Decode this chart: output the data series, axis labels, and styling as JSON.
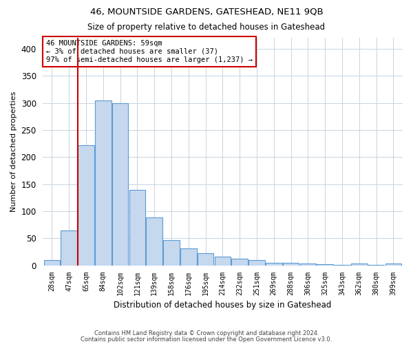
{
  "title": "46, MOUNTSIDE GARDENS, GATESHEAD, NE11 9QB",
  "subtitle": "Size of property relative to detached houses in Gateshead",
  "xlabel": "Distribution of detached houses by size in Gateshead",
  "ylabel": "Number of detached properties",
  "bar_labels": [
    "28sqm",
    "47sqm",
    "65sqm",
    "84sqm",
    "102sqm",
    "121sqm",
    "139sqm",
    "158sqm",
    "176sqm",
    "195sqm",
    "214sqm",
    "232sqm",
    "251sqm",
    "269sqm",
    "288sqm",
    "306sqm",
    "325sqm",
    "343sqm",
    "362sqm",
    "380sqm",
    "399sqm"
  ],
  "bar_values": [
    10,
    65,
    222,
    305,
    300,
    140,
    88,
    47,
    32,
    22,
    16,
    13,
    10,
    5,
    5,
    3,
    2,
    1,
    3,
    1,
    3
  ],
  "bar_color": "#c5d8ed",
  "bar_edge_color": "#5b9bd5",
  "vline_x": 1.5,
  "vline_color": "#cc0000",
  "annotation_title": "46 MOUNTSIDE GARDENS: 59sqm",
  "annotation_line1": "← 3% of detached houses are smaller (37)",
  "annotation_line2": "97% of semi-detached houses are larger (1,237) →",
  "annotation_box_edgecolor": "#cc0000",
  "ylim": [
    0,
    420
  ],
  "yticks": [
    0,
    50,
    100,
    150,
    200,
    250,
    300,
    350,
    400
  ],
  "footer1": "Contains HM Land Registry data © Crown copyright and database right 2024.",
  "footer2": "Contains public sector information licensed under the Open Government Licence v3.0.",
  "bg_color": "#ffffff",
  "grid_color": "#c8d4e0"
}
